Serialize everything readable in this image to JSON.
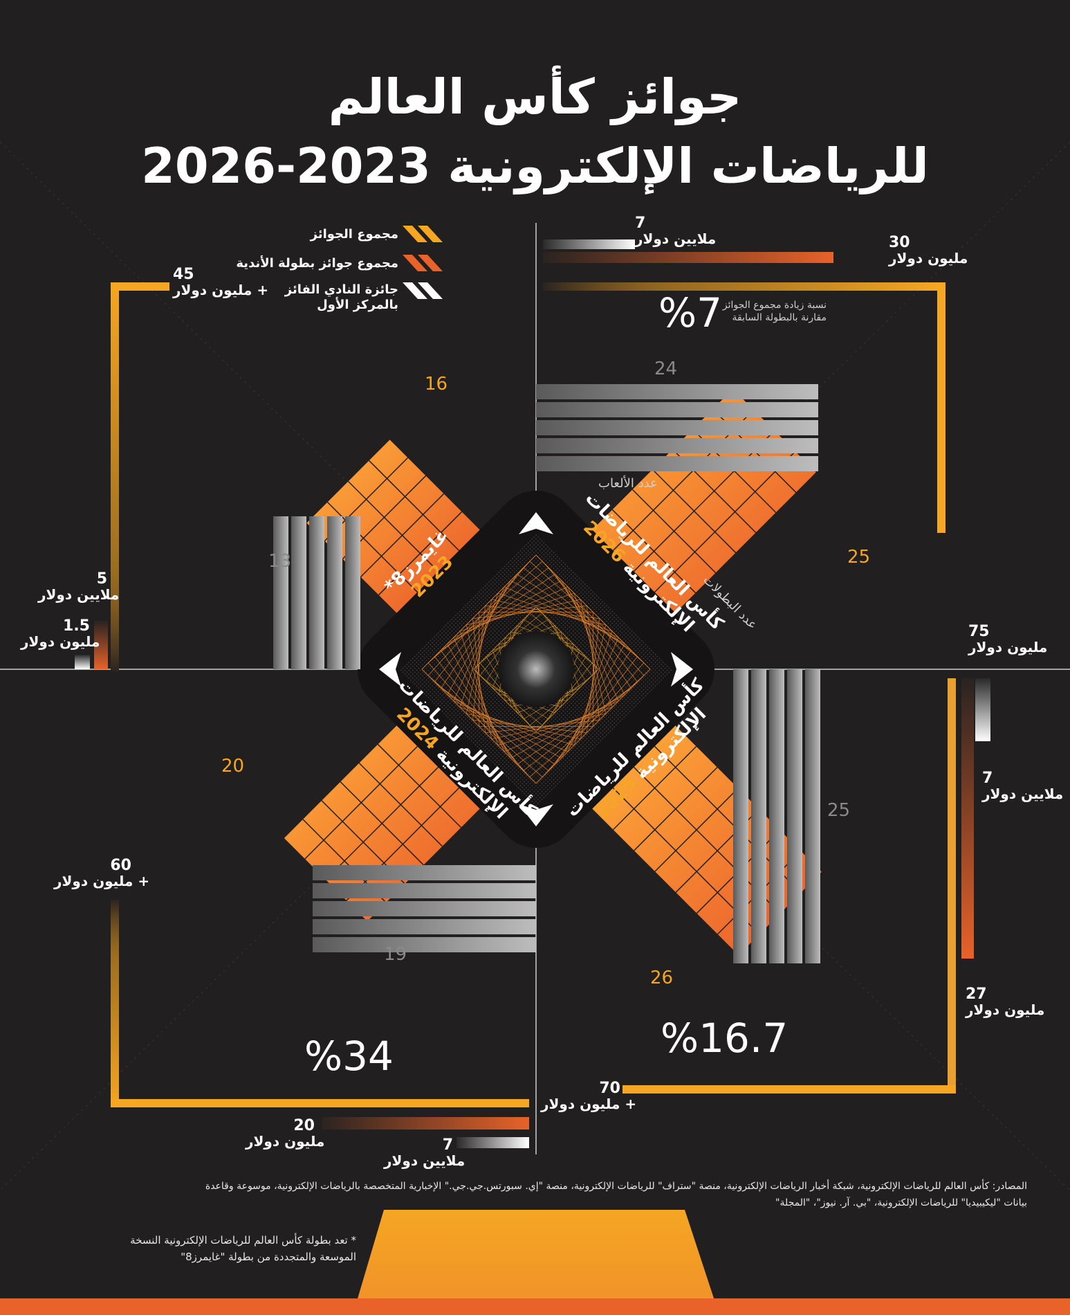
{
  "header": {
    "title_line1": "جوائز كأس العالم",
    "title_line2": "للرياضات الإلكترونية 2023-2026"
  },
  "legend": {
    "total_prize": "مجموع الجوائز",
    "club_championship": "مجموع جوائز بطولة الأندية",
    "winner_prize_line1": "جائزة النادي الفائز",
    "winner_prize_line2": "بالمركز الأول"
  },
  "editions": {
    "e2023_name": "غايمرز8*",
    "e2023_year": "2023",
    "e2024_name_1": "كأس العالم للرياضات",
    "e2024_name_2": "الإلكترونية",
    "e2024_year": "2024",
    "e2025_name_1": "كأس العالم للرياضات",
    "e2025_name_2": "الإلكترونية",
    "e2025_year": "2025",
    "e2026_name_1": "كأس العالم للرياضات",
    "e2026_name_2": "الإلكترونية",
    "e2026_year": "2026"
  },
  "labels": {
    "2026_winner_val": "7",
    "2026_winner_unit": "ملايين دولار",
    "2026_club_val": "30",
    "2026_club_unit": "مليون دولار",
    "2026_total_val": "75",
    "2026_total_unit": "مليون دولار",
    "2026_pct": "%7",
    "2026_pct_note_1": "نسبة زيادة مجموع الجوائز",
    "2026_pct_note_2": "مقارنة بالبطولة السابقة",
    "games_caption": "عدد الألعاب",
    "tournaments_caption": "عدد البطولات",
    "2026_games": "24",
    "2026_tournaments": "25",
    "2023_total_val": "45",
    "2023_total_unit": "مليون دولار +",
    "2023_club_val": "5",
    "2023_club_unit": "ملايين دولار",
    "2023_winner_val": "1.5",
    "2023_winner_unit": "مليون دولار",
    "2023_games": "13",
    "2023_tournaments": "16",
    "2024_total_val": "60",
    "2024_total_unit": "مليون دولار +",
    "2024_club_val": "20",
    "2024_club_unit": "مليون دولار",
    "2024_winner_val": "7",
    "2024_winner_unit": "ملايين دولار",
    "2024_games": "19",
    "2024_tournaments": "20",
    "2024_pct": "%34",
    "2025_total_val": "70",
    "2025_total_unit": "مليون دولار +",
    "2025_club_val": "27",
    "2025_club_unit": "مليون دولار",
    "2025_winner_val": "7",
    "2025_winner_unit": "ملايين دولار",
    "2025_games": "25",
    "2025_tournaments": "26",
    "2025_pct": "%16.7"
  },
  "footer": {
    "sources_1": "المصادر: كأس العالم للرياضات الإلكترونية، شبكة أخبار الرياضات الإلكترونية، منصة \"ستراف\" للرياضات الإلكترونية، منصة \"إي. سبورتس.جي.جي.\" الإخبارية المتخصصة بالرياضات الإلكترونية، موسوعة وقاعدة",
    "sources_2": "بيانات \"ليكيبيديا\" للرياضات الإلكترونية، \"بي. آر. نيوز\"، \"المجلة\"",
    "note_1": "* تعد بطولة كأس العالم للرياضات الإلكترونية النسخة",
    "note_2": "الموسعة والمتجددة من بطولة \"غايمرز8\""
  },
  "colors": {
    "background": "#221f20",
    "accent_gold": "#f5a623",
    "accent_orange": "#e8622a",
    "winner_white": "#ffffff",
    "games_gray": "#9a9a9a"
  },
  "chart_data": {
    "type": "bar",
    "categories": [
      "2023",
      "2024",
      "2025",
      "2026"
    ],
    "series": [
      {
        "name": "مجموع الجوائز",
        "values": [
          45,
          60,
          70,
          75
        ]
      },
      {
        "name": "مجموع جوائز بطولة الأندية",
        "values": [
          5,
          20,
          27,
          30
        ]
      },
      {
        "name": "جائزة النادي الفائز بالمركز الأول",
        "values": [
          1.5,
          7,
          7,
          7
        ]
      },
      {
        "name": "عدد الألعاب",
        "values": [
          13,
          19,
          25,
          24
        ]
      },
      {
        "name": "عدد البطولات",
        "values": [
          16,
          20,
          26,
          25
        ]
      }
    ],
    "growth_percent": {
      "2024": 34,
      "2025": 16.7,
      "2026": 7
    },
    "unit": "مليون دولار"
  }
}
